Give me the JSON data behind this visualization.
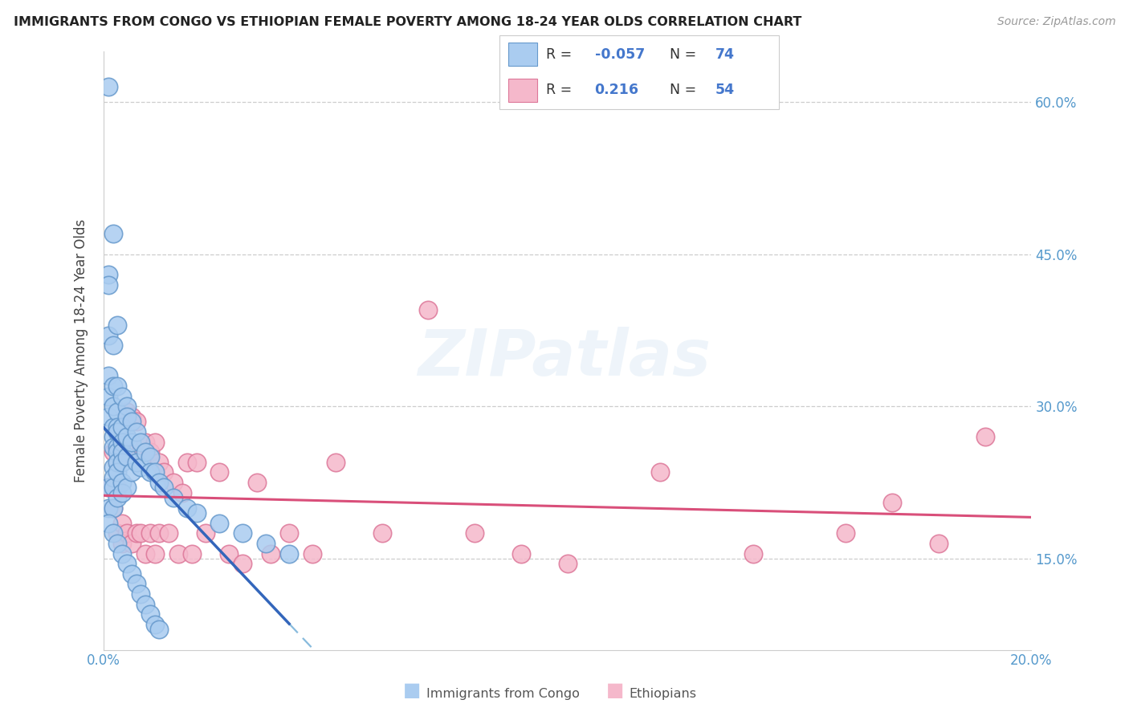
{
  "title": "IMMIGRANTS FROM CONGO VS ETHIOPIAN FEMALE POVERTY AMONG 18-24 YEAR OLDS CORRELATION CHART",
  "source": "Source: ZipAtlas.com",
  "ylabel": "Female Poverty Among 18-24 Year Olds",
  "xlim": [
    0.0,
    0.2
  ],
  "ylim": [
    0.06,
    0.65
  ],
  "congo_color": "#aaccf0",
  "congo_edge": "#6699cc",
  "ethiopian_color": "#f5b8cb",
  "ethiopian_edge": "#dd7799",
  "congo_R": -0.057,
  "congo_N": 74,
  "ethiopian_R": 0.216,
  "ethiopian_N": 54,
  "legend_label_congo": "Immigrants from Congo",
  "legend_label_ethiopian": "Ethiopians",
  "background_color": "#ffffff",
  "grid_color": "#c8c8c8",
  "right_ytick_labels": [
    "15.0%",
    "30.0%",
    "45.0%",
    "60.0%"
  ],
  "ytick_positions": [
    0.15,
    0.3,
    0.45,
    0.6
  ],
  "xtick_positions": [
    0.0,
    0.04,
    0.08,
    0.12,
    0.16,
    0.2
  ],
  "xtick_labels": [
    "0.0%",
    "",
    "",
    "",
    "",
    "20.0%"
  ],
  "congo_scatter_x": [
    0.001,
    0.001,
    0.001,
    0.001,
    0.001,
    0.001,
    0.001,
    0.001,
    0.001,
    0.002,
    0.002,
    0.002,
    0.002,
    0.002,
    0.002,
    0.002,
    0.002,
    0.002,
    0.002,
    0.002,
    0.003,
    0.003,
    0.003,
    0.003,
    0.003,
    0.003,
    0.003,
    0.003,
    0.003,
    0.003,
    0.004,
    0.004,
    0.004,
    0.004,
    0.004,
    0.004,
    0.004,
    0.005,
    0.005,
    0.005,
    0.005,
    0.005,
    0.006,
    0.006,
    0.006,
    0.007,
    0.007,
    0.008,
    0.008,
    0.009,
    0.01,
    0.01,
    0.011,
    0.012,
    0.013,
    0.015,
    0.018,
    0.02,
    0.025,
    0.03,
    0.035,
    0.04,
    0.001,
    0.002,
    0.003,
    0.004,
    0.005,
    0.006,
    0.007,
    0.008,
    0.009,
    0.01,
    0.011,
    0.012
  ],
  "congo_scatter_y": [
    0.615,
    0.43,
    0.42,
    0.37,
    0.33,
    0.31,
    0.29,
    0.22,
    0.2,
    0.47,
    0.36,
    0.32,
    0.3,
    0.28,
    0.27,
    0.26,
    0.24,
    0.23,
    0.22,
    0.2,
    0.38,
    0.32,
    0.295,
    0.28,
    0.275,
    0.26,
    0.255,
    0.245,
    0.235,
    0.21,
    0.31,
    0.28,
    0.265,
    0.255,
    0.245,
    0.225,
    0.215,
    0.3,
    0.29,
    0.27,
    0.25,
    0.22,
    0.285,
    0.265,
    0.235,
    0.275,
    0.245,
    0.265,
    0.24,
    0.255,
    0.25,
    0.235,
    0.235,
    0.225,
    0.22,
    0.21,
    0.2,
    0.195,
    0.185,
    0.175,
    0.165,
    0.155,
    0.185,
    0.175,
    0.165,
    0.155,
    0.145,
    0.135,
    0.125,
    0.115,
    0.105,
    0.095,
    0.085,
    0.08
  ],
  "ethiopian_scatter_x": [
    0.001,
    0.002,
    0.002,
    0.003,
    0.003,
    0.003,
    0.004,
    0.004,
    0.004,
    0.005,
    0.005,
    0.005,
    0.006,
    0.006,
    0.007,
    0.007,
    0.008,
    0.008,
    0.009,
    0.009,
    0.01,
    0.01,
    0.011,
    0.011,
    0.012,
    0.012,
    0.013,
    0.014,
    0.015,
    0.016,
    0.017,
    0.018,
    0.019,
    0.02,
    0.022,
    0.025,
    0.027,
    0.03,
    0.033,
    0.036,
    0.04,
    0.045,
    0.05,
    0.06,
    0.07,
    0.08,
    0.09,
    0.1,
    0.12,
    0.14,
    0.16,
    0.17,
    0.18,
    0.19
  ],
  "ethiopian_scatter_y": [
    0.22,
    0.255,
    0.2,
    0.245,
    0.175,
    0.22,
    0.255,
    0.185,
    0.165,
    0.295,
    0.255,
    0.175,
    0.29,
    0.165,
    0.285,
    0.175,
    0.255,
    0.175,
    0.265,
    0.155,
    0.255,
    0.175,
    0.265,
    0.155,
    0.245,
    0.175,
    0.235,
    0.175,
    0.225,
    0.155,
    0.215,
    0.245,
    0.155,
    0.245,
    0.175,
    0.235,
    0.155,
    0.145,
    0.225,
    0.155,
    0.175,
    0.155,
    0.245,
    0.175,
    0.395,
    0.175,
    0.155,
    0.145,
    0.235,
    0.155,
    0.175,
    0.205,
    0.165,
    0.27
  ]
}
